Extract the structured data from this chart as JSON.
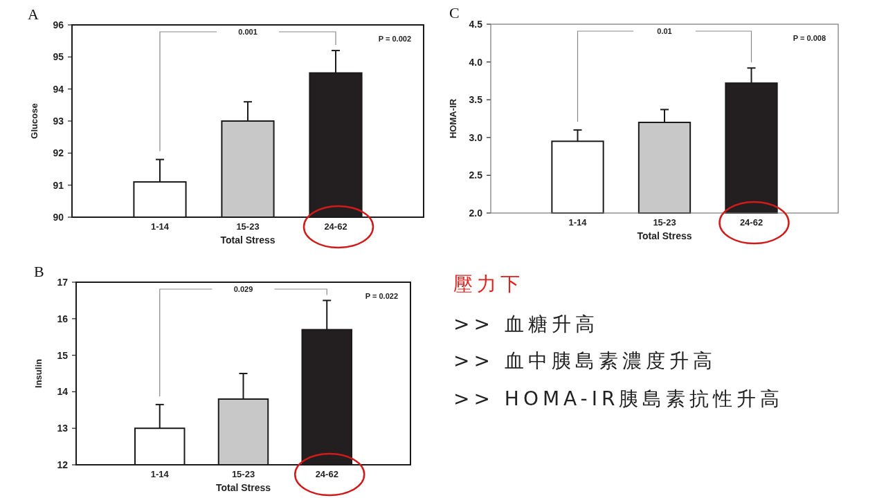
{
  "chart_data": [
    {
      "type": "bar",
      "title": "A",
      "xlabel": "Total Stress",
      "ylabel": "Glucose",
      "categories": [
        "1-14",
        "15-23",
        "24-62"
      ],
      "values": [
        91.1,
        93.0,
        94.5
      ],
      "colors": [
        "#ffffff",
        "#c8c8c8",
        "#231f20"
      ],
      "errors": [
        [
          91.1,
          91.8
        ],
        [
          93.0,
          93.6
        ],
        [
          94.5,
          95.2
        ]
      ],
      "ylim": [
        90,
        96
      ],
      "yticks": [
        90,
        91,
        92,
        93,
        94,
        95,
        96
      ],
      "annotations": [
        "0.001",
        "P = 0.002"
      ]
    },
    {
      "type": "bar",
      "title": "C",
      "xlabel": "Total Stress",
      "ylabel": "HOMA-IR",
      "categories": [
        "1-14",
        "15-23",
        "24-62"
      ],
      "values": [
        2.95,
        3.2,
        3.72
      ],
      "colors": [
        "#ffffff",
        "#c8c8c8",
        "#231f20"
      ],
      "errors": [
        [
          2.95,
          3.1
        ],
        [
          3.2,
          3.37
        ],
        [
          3.72,
          3.92
        ]
      ],
      "ylim": [
        2,
        4.5
      ],
      "yticks": [
        {
          "value": 2,
          "label": "2.0"
        },
        {
          "value": 2.5,
          "label": "2.5"
        },
        {
          "value": 3,
          "label": "3.0"
        },
        {
          "value": 3.5,
          "label": "3.5"
        },
        {
          "value": 4,
          "label": "4.0"
        },
        {
          "value": 4.5,
          "label": "4.5"
        }
      ],
      "annotations": [
        "0.01",
        "P = 0.008"
      ]
    },
    {
      "type": "bar",
      "title": "B",
      "xlabel": "Total Stress",
      "ylabel": "Insulin",
      "categories": [
        "1-14",
        "15-23",
        "24-62"
      ],
      "values": [
        13.0,
        13.8,
        15.7
      ],
      "colors": [
        "#ffffff",
        "#c8c8c8",
        "#231f20"
      ],
      "errors": [
        [
          13.0,
          13.65
        ],
        [
          13.8,
          14.5
        ],
        [
          15.7,
          16.5
        ]
      ],
      "ylim": [
        12,
        17
      ],
      "yticks": [
        12,
        13,
        14,
        15,
        16,
        17
      ],
      "annotations": [
        "0.029",
        "P = 0.022"
      ]
    },
    {
      "type": "other",
      "annotations": [
        "壓力下",
        ">> 血糖升高",
        ">> 血中胰島素濃度升高",
        ">> HOMA-IR胰島素抗性升高"
      ]
    }
  ]
}
